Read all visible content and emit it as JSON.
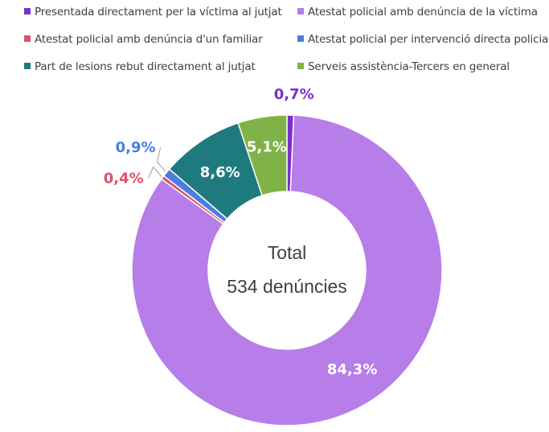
{
  "chart_data": {
    "type": "pie",
    "subtype": "donut",
    "center_text": [
      "Total",
      "534 denúncies"
    ],
    "legend_position": "top",
    "slices": [
      {
        "name": "Presentada directament per la víctima al jutjat",
        "value": 0.7,
        "label": "0,7%",
        "color": "#7b2fc9"
      },
      {
        "name": "Atestat policial amb denúncia de la víctima",
        "value": 84.3,
        "label": "84,3%",
        "color": "#b77de8"
      },
      {
        "name": "Atestat policial amb denúncia d'un familiar",
        "value": 0.4,
        "label": "0,4%",
        "color": "#e0506f"
      },
      {
        "name": "Atestat policial per intervenció directa policial",
        "value": 0.9,
        "label": "0,9%",
        "color": "#4a7de0"
      },
      {
        "name": "Part de lesions rebut directament al jutjat",
        "value": 8.6,
        "label": "8,6%",
        "color": "#1f7a80"
      },
      {
        "name": "Serveis assistència-Tercers en general",
        "value": 5.1,
        "label": "5,1%",
        "color": "#7fb347"
      }
    ]
  }
}
